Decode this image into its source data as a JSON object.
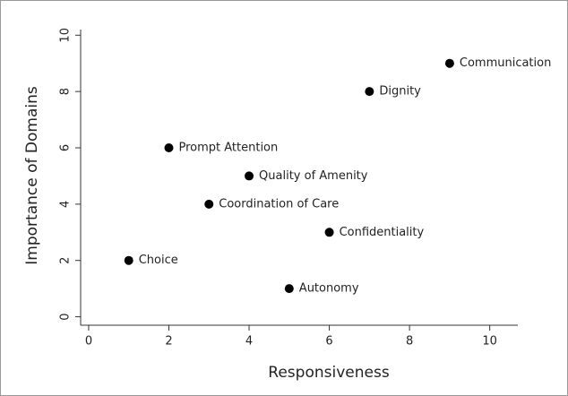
{
  "chart_data": {
    "type": "scatter",
    "xlabel": "Responsiveness",
    "ylabel": "Importance of Domains",
    "labels": [
      "Communication",
      "Dignity",
      "Prompt Attention",
      "Quality of Amenity",
      "Coordination of Care",
      "Confidentiality",
      "Choice",
      "Autonomy"
    ],
    "x": [
      9,
      7,
      2,
      4,
      3,
      6,
      1,
      5
    ],
    "values": [
      9,
      8,
      6,
      5,
      4,
      3,
      2,
      1
    ],
    "color": "#000000",
    "xlim": [
      -0.2,
      10.7
    ],
    "ylim": [
      -0.3,
      10.2
    ],
    "xticks": [
      0,
      2,
      4,
      6,
      8,
      10
    ],
    "yticks": [
      0,
      2,
      4,
      6,
      8,
      10
    ],
    "grid": false
  }
}
